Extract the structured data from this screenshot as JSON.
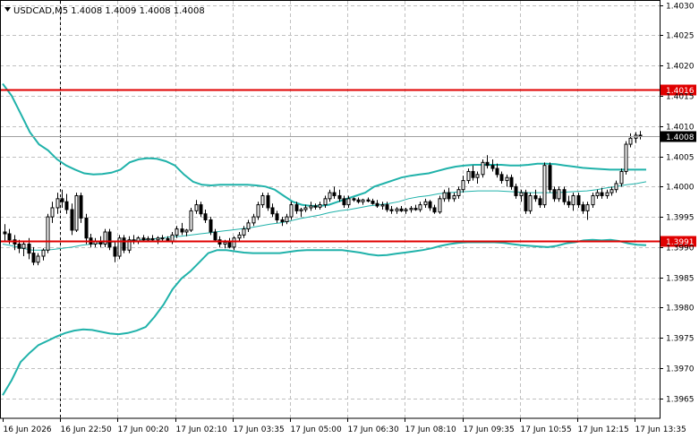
{
  "header": {
    "symbol_line": "USDCAD,M5  1.4008 1.4009 1.4008 1.4008"
  },
  "colors": {
    "background": "#ffffff",
    "grid": "#c0c0c0",
    "candle": "#000000",
    "bollinger": "#20b2aa",
    "level_line": "#e00000",
    "price_line": "#a0a0a0",
    "price_badge_bg": "#000000",
    "level_badge_bg": "#e00000"
  },
  "chart_data": {
    "type": "candlestick",
    "symbol": "USDCAD",
    "timeframe": "M5",
    "ylim": [
      1.39617,
      1.40307
    ],
    "y_ticks": [
      "1.4030",
      "1.4025",
      "1.4020",
      "1.4015",
      "1.4010",
      "1.4005",
      "1.4000",
      "1.3995",
      "1.3990",
      "1.3985",
      "1.3980",
      "1.3975",
      "1.3970",
      "1.3965"
    ],
    "x_ticks": [
      "16 Jun 2026",
      "16 Jun 22:50",
      "17 Jun 00:20",
      "17 Jun 02:10",
      "17 Jun 03:35",
      "17 Jun 05:00",
      "17 Jun 06:30",
      "17 Jun 08:10",
      "17 Jun 09:35",
      "17 Jun 10:55",
      "17 Jun 12:15",
      "17 Jun 13:35"
    ],
    "grid": true,
    "levels": [
      {
        "label": "1.4016",
        "value": 1.4016
      },
      {
        "label": "1.3991",
        "value": 1.3991
      }
    ],
    "current_price": {
      "label": "1.4008",
      "value": 1.40083
    },
    "crosshair_label": "16 Jun 22:50",
    "candles": [
      [
        1.39925,
        1.39938,
        1.3991,
        1.39922
      ],
      [
        1.39922,
        1.3993,
        1.39905,
        1.39912
      ],
      [
        1.39912,
        1.3992,
        1.39895,
        1.39905
      ],
      [
        1.39905,
        1.39912,
        1.3989,
        1.39898
      ],
      [
        1.39898,
        1.3991,
        1.39885,
        1.39905
      ],
      [
        1.39905,
        1.39915,
        1.3988,
        1.3989
      ],
      [
        1.3989,
        1.399,
        1.3987,
        1.39875
      ],
      [
        1.39875,
        1.3989,
        1.3987,
        1.39885
      ],
      [
        1.39885,
        1.39898,
        1.39878,
        1.39895
      ],
      [
        1.39895,
        1.39955,
        1.3989,
        1.3995
      ],
      [
        1.3995,
        1.39975,
        1.3994,
        1.39965
      ],
      [
        1.39965,
        1.3999,
        1.39955,
        1.3998
      ],
      [
        1.3998,
        1.39995,
        1.39965,
        1.39975
      ],
      [
        1.39975,
        1.39988,
        1.39955,
        1.39962
      ],
      [
        1.39962,
        1.39972,
        1.3992,
        1.39928
      ],
      [
        1.39928,
        1.3999,
        1.39925,
        1.39985
      ],
      [
        1.39985,
        1.3999,
        1.3994,
        1.39948
      ],
      [
        1.39948,
        1.39955,
        1.39905,
        1.39915
      ],
      [
        1.39915,
        1.39922,
        1.399,
        1.39905
      ],
      [
        1.39905,
        1.39915,
        1.399,
        1.3991
      ],
      [
        1.3991,
        1.39918,
        1.399,
        1.39905
      ],
      [
        1.39905,
        1.3993,
        1.399,
        1.39925
      ],
      [
        1.39925,
        1.3993,
        1.39895,
        1.399
      ],
      [
        1.399,
        1.3991,
        1.39875,
        1.39885
      ],
      [
        1.39885,
        1.3992,
        1.3988,
        1.39915
      ],
      [
        1.39915,
        1.3992,
        1.3989,
        1.39895
      ],
      [
        1.39895,
        1.39918,
        1.3989,
        1.39912
      ],
      [
        1.39912,
        1.3992,
        1.39905,
        1.3991
      ],
      [
        1.3991,
        1.39918,
        1.39905,
        1.39915
      ],
      [
        1.39915,
        1.3992,
        1.39908,
        1.39912
      ],
      [
        1.39912,
        1.39918,
        1.39908,
        1.39914
      ],
      [
        1.39914,
        1.3992,
        1.3991,
        1.39912
      ],
      [
        1.39912,
        1.39918,
        1.39905,
        1.39915
      ],
      [
        1.39915,
        1.3992,
        1.3991,
        1.39914
      ],
      [
        1.39914,
        1.39918,
        1.39908,
        1.3991
      ],
      [
        1.3991,
        1.39925,
        1.39905,
        1.3992
      ],
      [
        1.3992,
        1.39935,
        1.39915,
        1.3993
      ],
      [
        1.3993,
        1.3994,
        1.3992,
        1.39925
      ],
      [
        1.39925,
        1.3993,
        1.39918,
        1.39928
      ],
      [
        1.39928,
        1.39965,
        1.39925,
        1.3996
      ],
      [
        1.3996,
        1.39978,
        1.39955,
        1.3997
      ],
      [
        1.3997,
        1.39975,
        1.3995,
        1.39955
      ],
      [
        1.39955,
        1.39962,
        1.3994,
        1.39945
      ],
      [
        1.39945,
        1.3995,
        1.3992,
        1.39925
      ],
      [
        1.39925,
        1.3993,
        1.3991,
        1.39912
      ],
      [
        1.39912,
        1.39918,
        1.399,
        1.39905
      ],
      [
        1.39905,
        1.39912,
        1.39898,
        1.39908
      ],
      [
        1.39908,
        1.39915,
        1.39898,
        1.399
      ],
      [
        1.399,
        1.39918,
        1.39895,
        1.39915
      ],
      [
        1.39915,
        1.39925,
        1.3991,
        1.3992
      ],
      [
        1.3992,
        1.39935,
        1.39915,
        1.3993
      ],
      [
        1.3993,
        1.39945,
        1.39925,
        1.3994
      ],
      [
        1.3994,
        1.39955,
        1.39935,
        1.3995
      ],
      [
        1.3995,
        1.39975,
        1.39945,
        1.3997
      ],
      [
        1.3997,
        1.3999,
        1.39965,
        1.39985
      ],
      [
        1.39985,
        1.3999,
        1.3996,
        1.39965
      ],
      [
        1.39965,
        1.39972,
        1.3995,
        1.39955
      ],
      [
        1.39955,
        1.3996,
        1.3994,
        1.39945
      ],
      [
        1.39945,
        1.3995,
        1.39935,
        1.39942
      ],
      [
        1.39942,
        1.39955,
        1.39938,
        1.3995
      ],
      [
        1.3995,
        1.39975,
        1.39945,
        1.3997
      ],
      [
        1.3997,
        1.39975,
        1.39955,
        1.3996
      ],
      [
        1.3996,
        1.39965,
        1.3995,
        1.39962
      ],
      [
        1.39962,
        1.3997,
        1.39958,
        1.39965
      ],
      [
        1.39965,
        1.39975,
        1.3996,
        1.39968
      ],
      [
        1.39968,
        1.39972,
        1.39962,
        1.39966
      ],
      [
        1.39966,
        1.39975,
        1.39962,
        1.3997
      ],
      [
        1.3997,
        1.39985,
        1.39965,
        1.3998
      ],
      [
        1.3998,
        1.39995,
        1.39975,
        1.3999
      ],
      [
        1.3999,
        1.4,
        1.3998,
        1.39985
      ],
      [
        1.39985,
        1.39995,
        1.39975,
        1.3998
      ],
      [
        1.3998,
        1.39985,
        1.39965,
        1.3997
      ],
      [
        1.3997,
        1.39985,
        1.39965,
        1.3998
      ],
      [
        1.3998,
        1.39982,
        1.39975,
        1.39978
      ],
      [
        1.39978,
        1.39982,
        1.39972,
        1.39975
      ],
      [
        1.39975,
        1.3998,
        1.3997,
        1.39978
      ],
      [
        1.39978,
        1.39982,
        1.39974,
        1.39976
      ],
      [
        1.39976,
        1.3998,
        1.3997,
        1.39972
      ],
      [
        1.39972,
        1.39978,
        1.39965,
        1.39968
      ],
      [
        1.39968,
        1.39975,
        1.39962,
        1.3997
      ],
      [
        1.3997,
        1.39975,
        1.39958,
        1.39962
      ],
      [
        1.39962,
        1.39968,
        1.39955,
        1.3996
      ],
      [
        1.3996,
        1.39966,
        1.39955,
        1.39963
      ],
      [
        1.39963,
        1.39968,
        1.39958,
        1.3996
      ],
      [
        1.3996,
        1.39965,
        1.39955,
        1.39962
      ],
      [
        1.39962,
        1.39968,
        1.39957,
        1.39964
      ],
      [
        1.39964,
        1.3997,
        1.3996,
        1.39962
      ],
      [
        1.39962,
        1.39975,
        1.39958,
        1.3997
      ],
      [
        1.3997,
        1.3998,
        1.39965,
        1.39975
      ],
      [
        1.39975,
        1.39978,
        1.3996,
        1.39965
      ],
      [
        1.39965,
        1.3997,
        1.39955,
        1.39958
      ],
      [
        1.39958,
        1.39985,
        1.39955,
        1.3998
      ],
      [
        1.3998,
        1.39995,
        1.39975,
        1.3999
      ],
      [
        1.3999,
        1.39998,
        1.39975,
        1.3998
      ],
      [
        1.3998,
        1.3999,
        1.39975,
        1.39985
      ],
      [
        1.39985,
        1.4,
        1.3998,
        1.39995
      ],
      [
        1.39995,
        1.40018,
        1.3999,
        1.4001
      ],
      [
        1.4001,
        1.4003,
        1.40005,
        1.40025
      ],
      [
        1.40025,
        1.40035,
        1.4001,
        1.40015
      ],
      [
        1.40015,
        1.40025,
        1.40005,
        1.4002
      ],
      [
        1.4002,
        1.40045,
        1.40015,
        1.4004
      ],
      [
        1.4004,
        1.40052,
        1.4003,
        1.40035
      ],
      [
        1.40035,
        1.40045,
        1.40025,
        1.4003
      ],
      [
        1.4003,
        1.40038,
        1.40015,
        1.4002
      ],
      [
        1.4002,
        1.40025,
        1.40005,
        1.4001
      ],
      [
        1.4001,
        1.4002,
        1.4,
        1.40015
      ],
      [
        1.40015,
        1.4002,
        1.39995,
        1.4
      ],
      [
        1.4,
        1.40005,
        1.3998,
        1.39985
      ],
      [
        1.39985,
        1.39995,
        1.39975,
        1.3999
      ],
      [
        1.3999,
        1.39995,
        1.39955,
        1.3996
      ],
      [
        1.3996,
        1.3999,
        1.39955,
        1.39985
      ],
      [
        1.39985,
        1.39995,
        1.39975,
        1.3998
      ],
      [
        1.3998,
        1.39985,
        1.39965,
        1.3997
      ],
      [
        1.3997,
        1.4004,
        1.39965,
        1.40035
      ],
      [
        1.40035,
        1.4004,
        1.3999,
        1.39995
      ],
      [
        1.39995,
        1.4,
        1.39975,
        1.3998
      ],
      [
        1.3998,
        1.4,
        1.39975,
        1.39995
      ],
      [
        1.39995,
        1.4,
        1.3997,
        1.39975
      ],
      [
        1.39975,
        1.39985,
        1.39965,
        1.3997
      ],
      [
        1.3997,
        1.3999,
        1.3996,
        1.39985
      ],
      [
        1.39985,
        1.3999,
        1.39965,
        1.3997
      ],
      [
        1.3997,
        1.39975,
        1.39955,
        1.3996
      ],
      [
        1.3996,
        1.39975,
        1.39945,
        1.3997
      ],
      [
        1.3997,
        1.3999,
        1.39965,
        1.39985
      ],
      [
        1.39985,
        1.39995,
        1.3998,
        1.3999
      ],
      [
        1.3999,
        1.39998,
        1.3998,
        1.39985
      ],
      [
        1.39985,
        1.39995,
        1.3998,
        1.3999
      ],
      [
        1.3999,
        1.4,
        1.39985,
        1.39995
      ],
      [
        1.39995,
        1.4001,
        1.3999,
        1.40005
      ],
      [
        1.40005,
        1.4003,
        1.4,
        1.40025
      ],
      [
        1.40025,
        1.40075,
        1.4002,
        1.4007
      ],
      [
        1.4007,
        1.40088,
        1.40065,
        1.4008
      ],
      [
        1.4008,
        1.4009,
        1.40072,
        1.40085
      ],
      [
        1.40085,
        1.40092,
        1.40078,
        1.40083
      ]
    ],
    "bollinger_upper": [
      1.4017,
      1.4015,
      1.4012,
      1.4009,
      1.4007,
      1.4006,
      1.40045,
      1.40035,
      1.40028,
      1.40022,
      1.4002,
      1.40021,
      1.40023,
      1.40028,
      1.4004,
      1.40045,
      1.40047,
      1.40046,
      1.40042,
      1.40035,
      1.4002,
      1.40008,
      1.40003,
      1.40002,
      1.40003,
      1.40003,
      1.40003,
      1.40003,
      1.40002,
      1.4,
      1.39995,
      1.39985,
      1.39975,
      1.3997,
      1.39968,
      1.39968,
      1.3997,
      1.39975,
      1.3998,
      1.39985,
      1.3999,
      1.4,
      1.40005,
      1.4001,
      1.40015,
      1.40018,
      1.4002,
      1.40022,
      1.40026,
      1.4003,
      1.40033,
      1.40035,
      1.40036,
      1.40036,
      1.40036,
      1.40036,
      1.40035,
      1.40035,
      1.40036,
      1.40038,
      1.40038,
      1.40037,
      1.40035,
      1.40033,
      1.40031,
      1.4003,
      1.40029,
      1.40028,
      1.40028,
      1.40028,
      1.40028,
      1.40028
    ],
    "bollinger_middle": [
      1.39905,
      1.39902,
      1.39898,
      1.39895,
      1.39895,
      1.39896,
      1.39898,
      1.399,
      1.39903,
      1.39905,
      1.39907,
      1.39908,
      1.3991,
      1.39911,
      1.39912,
      1.39913,
      1.39915,
      1.39917,
      1.39918,
      1.3992,
      1.39922,
      1.39924,
      1.39926,
      1.39928,
      1.3993,
      1.39932,
      1.39935,
      1.39938,
      1.3994,
      1.39943,
      1.39947,
      1.3995,
      1.39953,
      1.39957,
      1.3996,
      1.39962,
      1.39965,
      1.39968,
      1.3997,
      1.39972,
      1.39975,
      1.3998,
      1.39983,
      1.39985,
      1.39988,
      1.3999,
      1.39991,
      1.39992,
      1.39993,
      1.39993,
      1.39993,
      1.39992,
      1.39991,
      1.3999,
      1.3999,
      1.3999,
      1.3999,
      1.39991,
      1.39992,
      1.39993,
      1.39995,
      1.39998,
      1.4,
      1.40003,
      1.40005,
      1.40008
    ],
    "bollinger_lower": [
      1.39655,
      1.3968,
      1.3971,
      1.39725,
      1.39738,
      1.39745,
      1.39752,
      1.39758,
      1.39762,
      1.39764,
      1.39763,
      1.3976,
      1.39757,
      1.39756,
      1.39758,
      1.39762,
      1.39768,
      1.39785,
      1.39805,
      1.3983,
      1.39848,
      1.3986,
      1.39875,
      1.3989,
      1.39895,
      1.39895,
      1.39893,
      1.39891,
      1.3989,
      1.3989,
      1.3989,
      1.3989,
      1.39892,
      1.39894,
      1.39895,
      1.39895,
      1.39895,
      1.39895,
      1.39895,
      1.39893,
      1.39891,
      1.39888,
      1.39886,
      1.39887,
      1.39889,
      1.39891,
      1.39893,
      1.39895,
      1.39898,
      1.39902,
      1.39905,
      1.39907,
      1.39908,
      1.39908,
      1.39908,
      1.39908,
      1.39907,
      1.39905,
      1.39903,
      1.39902,
      1.39901,
      1.399,
      1.39902,
      1.39906,
      1.39908,
      1.39911,
      1.39912,
      1.39911,
      1.39912,
      1.3991,
      1.39906,
      1.39904,
      1.39903
    ]
  }
}
